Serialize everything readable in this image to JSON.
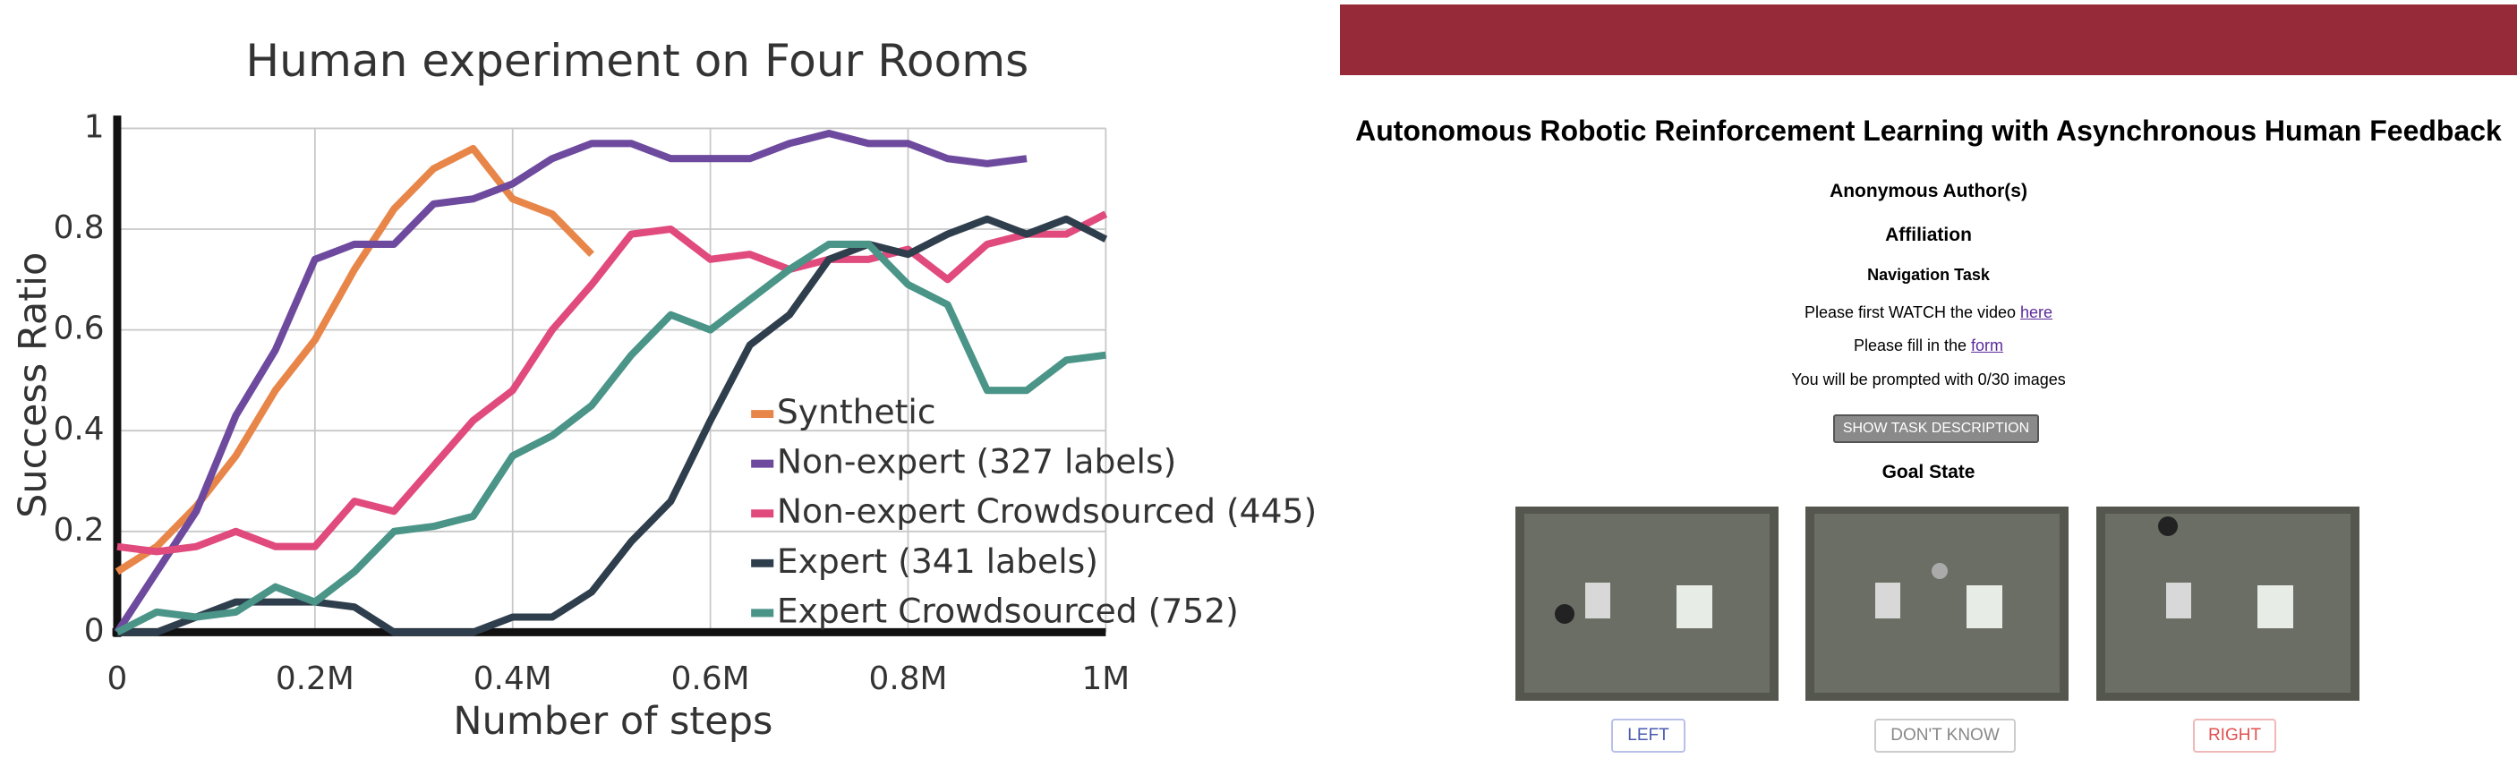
{
  "chart_data": {
    "type": "line",
    "title": "Human experiment on Four Rooms",
    "xlabel": "Number of steps",
    "ylabel": "Success Ratio",
    "x": [
      0,
      40000,
      80000,
      120000,
      160000,
      200000,
      240000,
      280000,
      320000,
      360000,
      400000,
      440000,
      480000,
      520000,
      560000,
      600000,
      640000,
      680000,
      720000,
      760000,
      800000,
      840000,
      880000,
      920000,
      960000,
      1000000
    ],
    "xlim": [
      0,
      1000000
    ],
    "ylim": [
      0,
      1
    ],
    "xticks": [
      0,
      {
        "value": 200000,
        "label": "0.2M"
      },
      {
        "value": 400000,
        "label": "0.4M"
      },
      {
        "value": 600000,
        "label": "0.6M"
      },
      {
        "value": 800000,
        "label": "0.8M"
      },
      {
        "value": 1000000,
        "label": "1M"
      }
    ],
    "yticks": [
      0,
      0.2,
      0.4,
      0.6,
      0.8,
      1
    ],
    "grid": true,
    "legend": "lower right",
    "series": [
      {
        "name": "Synthetic",
        "color": "#e8864a",
        "values": [
          0.12,
          0.17,
          0.25,
          0.35,
          0.48,
          0.58,
          0.72,
          0.84,
          0.92,
          0.96,
          0.86,
          0.83,
          0.75,
          null,
          null,
          null,
          null,
          null,
          null,
          null,
          null,
          null,
          null,
          null,
          null,
          null
        ]
      },
      {
        "name": "Non-expert (327 labels)",
        "color": "#6e4a9e",
        "values": [
          0,
          0.12,
          0.24,
          0.43,
          0.56,
          0.74,
          0.77,
          0.77,
          0.85,
          0.86,
          0.89,
          0.94,
          0.97,
          0.97,
          0.94,
          0.94,
          0.94,
          0.97,
          0.99,
          0.97,
          0.97,
          0.94,
          0.93,
          0.94,
          null,
          null
        ]
      },
      {
        "name": "Non-expert Crowdsourced (445)",
        "color": "#e04a7c",
        "values": [
          0.17,
          0.16,
          0.17,
          0.2,
          0.17,
          0.17,
          0.26,
          0.24,
          0.33,
          0.42,
          0.48,
          0.6,
          0.69,
          0.79,
          0.8,
          0.74,
          0.75,
          0.72,
          0.74,
          0.74,
          0.76,
          0.7,
          0.77,
          0.79,
          0.79,
          0.83
        ]
      },
      {
        "name": "Expert (341 labels)",
        "color": "#2e3e4c",
        "values": [
          0,
          0,
          0.03,
          0.06,
          0.06,
          0.06,
          0.05,
          0,
          0,
          0,
          0.03,
          0.03,
          0.08,
          0.18,
          0.26,
          0.42,
          0.57,
          0.63,
          0.74,
          0.77,
          0.75,
          0.79,
          0.82,
          0.79,
          0.82,
          0.78
        ]
      },
      {
        "name": "Expert Crowdsourced (752)",
        "color": "#4a9488",
        "values": [
          0,
          0.04,
          0.03,
          0.04,
          0.09,
          0.06,
          0.12,
          0.2,
          0.21,
          0.23,
          0.35,
          0.39,
          0.45,
          0.55,
          0.63,
          0.6,
          0.66,
          0.72,
          0.77,
          0.77,
          0.69,
          0.65,
          0.48,
          0.48,
          0.54,
          0.55
        ]
      }
    ]
  },
  "page": {
    "title": "Autonomous Robotic Reinforcement Learning with Asynchronous Human Feedback",
    "authors": "Anonymous Author(s)",
    "affiliation": "Affiliation",
    "task": "Navigation Task",
    "watch": {
      "text": "Please first WATCH the video",
      "link": "here"
    },
    "fill": {
      "text": "Please fill in the",
      "link": "form"
    },
    "prompt": "You will be prompted with 0/30 images",
    "show_button": "SHOW TASK DESCRIPTION",
    "goal": "Goal State",
    "buttons": [
      "LEFT",
      "DON'T KNOW",
      "RIGHT"
    ]
  }
}
